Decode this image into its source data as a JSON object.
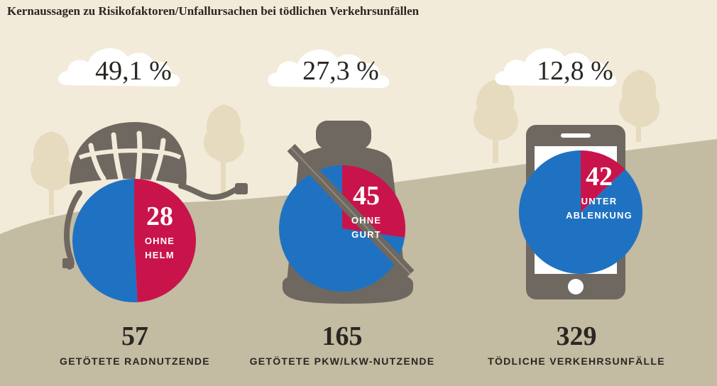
{
  "chart_data": {
    "type": "pie",
    "title": "Kernaussagen zu Risikofaktoren/Unfallursachen bei tödlichen Verkehrsunfällen",
    "colors": {
      "share": "#c8144a",
      "rest": "#1f72c2",
      "icon": "#6f6860",
      "hill": "#c3bba2",
      "background": "#f3ebd9"
    },
    "charts": [
      {
        "icon": "bicycle-helmet-icon",
        "percent_label": "49,1 %",
        "share_value": 28,
        "total_value": 57,
        "slice_lines": [
          "OHNE",
          "HELM"
        ],
        "total_label": "57",
        "caption": "GETÖTETE RADNUTZENDE"
      },
      {
        "icon": "car-seat-belt-icon",
        "percent_label": "27,3 %",
        "share_value": 45,
        "total_value": 165,
        "slice_lines": [
          "OHNE",
          "GURT"
        ],
        "total_label": "165",
        "caption": "GETÖTETE PKW/LKW-NUTZENDE"
      },
      {
        "icon": "smartphone-icon",
        "percent_label": "12,8 %",
        "share_value": 42,
        "total_value": 329,
        "slice_lines": [
          "UNTER",
          "ABLENKUNG"
        ],
        "total_label": "329",
        "caption": "TÖDLICHE VERKEHRSUNFÄLLE"
      }
    ]
  }
}
